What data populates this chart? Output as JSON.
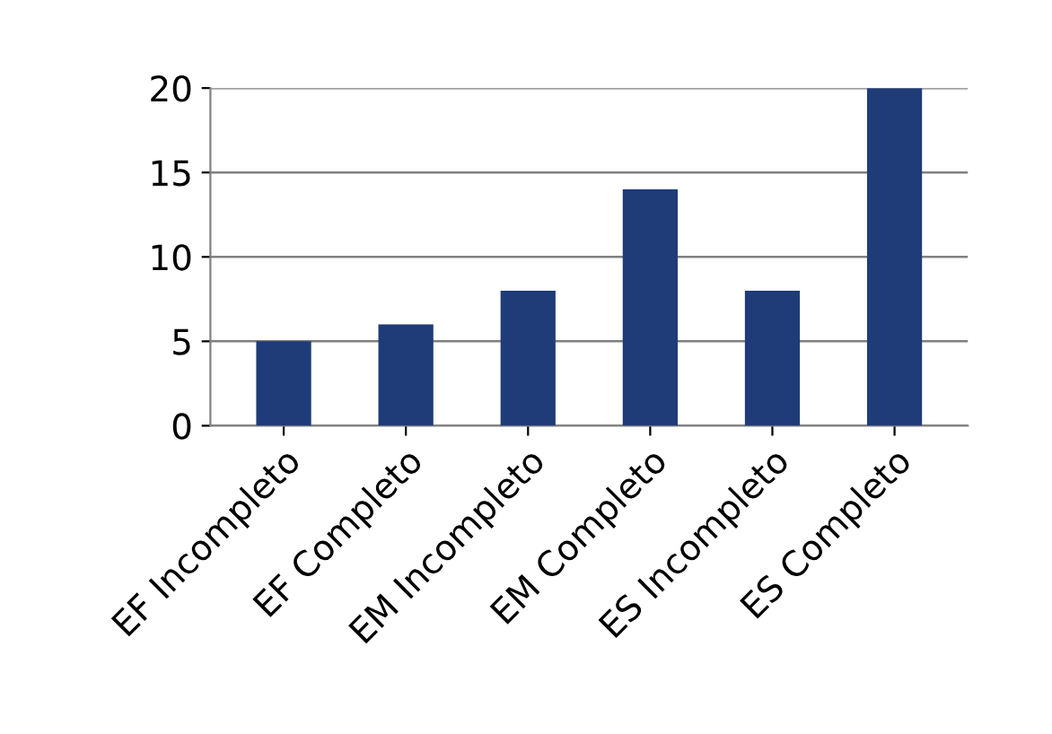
{
  "chart_data": {
    "type": "bar",
    "categories": [
      "EF Incompleto",
      "EF Completo",
      "EM Incompleto",
      "EM Completo",
      "ES Incompleto",
      "ES Completo"
    ],
    "values": [
      5,
      6,
      8,
      14,
      8,
      20
    ],
    "color": "#1f3c78",
    "ylim": [
      0,
      20
    ],
    "yticks": [
      0,
      5,
      10,
      15,
      20
    ],
    "grid": "y"
  }
}
